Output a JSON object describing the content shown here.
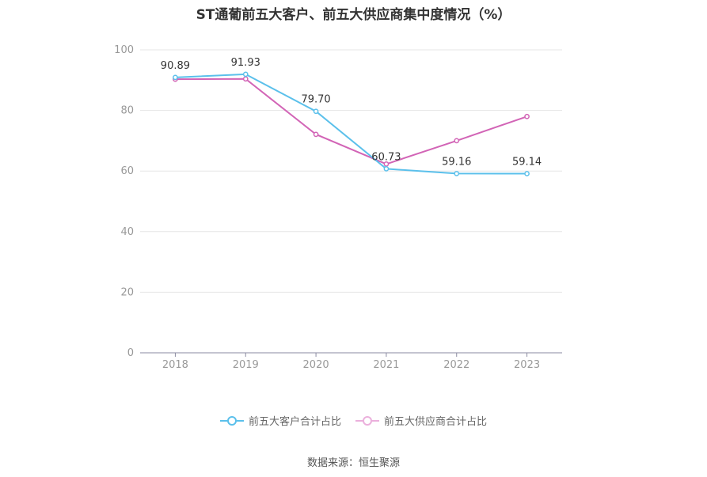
{
  "chart_data": {
    "type": "line",
    "title": "ST通葡前五大客户、前五大供应商集中度情况（%）",
    "categories": [
      "2018",
      "2019",
      "2020",
      "2021",
      "2022",
      "2023"
    ],
    "y_ticks": [
      "0",
      "20",
      "40",
      "60",
      "80",
      "100"
    ],
    "ylim": [
      0,
      100
    ],
    "grid": true,
    "legend_position": "bottom",
    "series": [
      {
        "name": "前五大客户合计占比",
        "color": "#5bc0eb",
        "values": [
          90.89,
          91.93,
          79.7,
          60.73,
          59.16,
          59.14
        ],
        "labels": [
          "90.89",
          "91.93",
          "79.70",
          "60.73",
          "59.16",
          "59.14"
        ]
      },
      {
        "name": "前五大供应商合计占比",
        "color": "#d264b6",
        "values": [
          90.3,
          90.4,
          72.1,
          62.3,
          70.0,
          78.0
        ],
        "labels": []
      }
    ]
  },
  "source": "数据来源：恒生聚源"
}
